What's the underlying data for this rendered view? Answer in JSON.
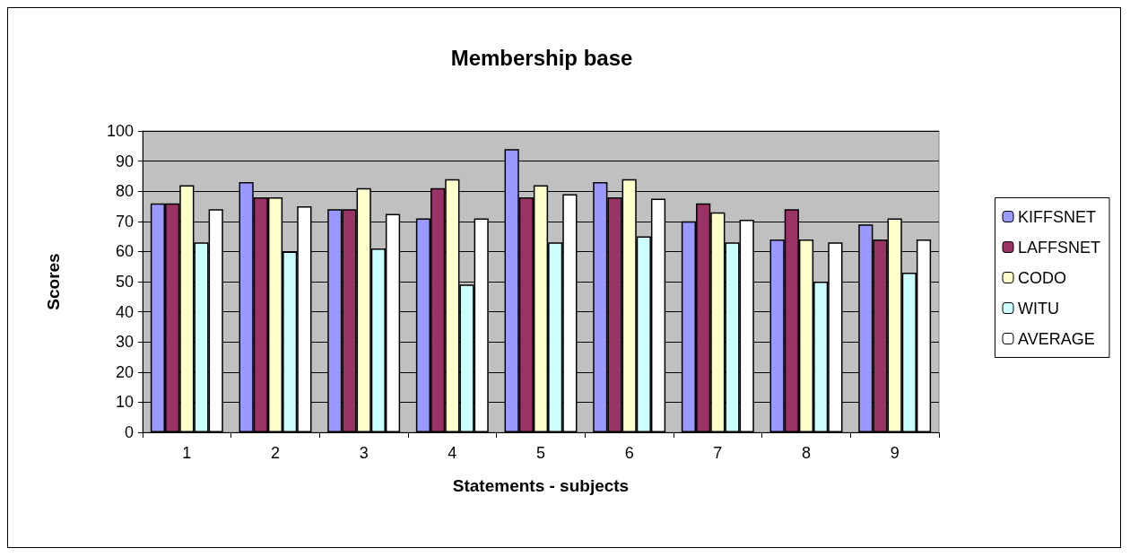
{
  "chart_data": {
    "type": "bar",
    "title": "Membership base",
    "xlabel": "Statements - subjects",
    "ylabel": "Scores",
    "categories": [
      "1",
      "2",
      "3",
      "4",
      "5",
      "6",
      "7",
      "8",
      "9"
    ],
    "series": [
      {
        "name": "KIFFSNET",
        "color": "#9999ff",
        "values": [
          76,
          83,
          74,
          71,
          94,
          83,
          70,
          64,
          69
        ]
      },
      {
        "name": "LAFFSNET",
        "color": "#993366",
        "values": [
          76,
          78,
          74,
          81,
          78,
          78,
          76,
          74,
          64
        ]
      },
      {
        "name": "CODO",
        "color": "#ffffcc",
        "values": [
          82,
          78,
          81,
          84,
          82,
          84,
          73,
          64,
          71
        ]
      },
      {
        "name": "WITU",
        "color": "#ccffff",
        "values": [
          63,
          60,
          61,
          49,
          63,
          65,
          63,
          50,
          53
        ]
      },
      {
        "name": "AVERAGE",
        "color": "#ffffff",
        "values": [
          74,
          75,
          72.5,
          71,
          79,
          77.5,
          70.5,
          63,
          64
        ]
      }
    ],
    "ylim": [
      0,
      100
    ],
    "yticks": [
      0,
      10,
      20,
      30,
      40,
      50,
      60,
      70,
      80,
      90,
      100
    ],
    "grid": "y",
    "legend": "right"
  }
}
